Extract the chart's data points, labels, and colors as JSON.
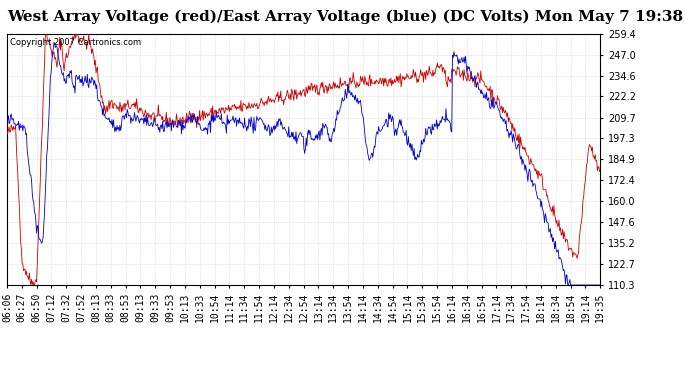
{
  "title": "West Array Voltage (red)/East Array Voltage (blue) (DC Volts) Mon May 7 19:38",
  "copyright": "Copyright 2007 Cartronics.com",
  "ylim": [
    110.3,
    259.4
  ],
  "yticks": [
    110.3,
    122.7,
    135.2,
    147.6,
    160.0,
    172.4,
    184.9,
    197.3,
    209.7,
    222.2,
    234.6,
    247.0,
    259.4
  ],
  "bg_color": "#ffffff",
  "plot_bg_color": "#ffffff",
  "grid_color": "#cccccc",
  "red_color": "#cc0000",
  "blue_color": "#0000cc",
  "title_fontsize": 11,
  "tick_fontsize": 7,
  "xtick_labels": [
    "06:06",
    "06:27",
    "06:50",
    "07:12",
    "07:32",
    "07:52",
    "08:13",
    "08:33",
    "08:53",
    "09:13",
    "09:33",
    "09:53",
    "10:13",
    "10:33",
    "10:54",
    "11:14",
    "11:34",
    "11:54",
    "12:14",
    "12:34",
    "12:54",
    "13:14",
    "13:34",
    "13:54",
    "14:14",
    "14:34",
    "14:54",
    "15:14",
    "15:34",
    "15:54",
    "16:14",
    "16:34",
    "16:54",
    "17:14",
    "17:34",
    "17:54",
    "18:14",
    "18:34",
    "18:54",
    "19:14",
    "19:35"
  ]
}
